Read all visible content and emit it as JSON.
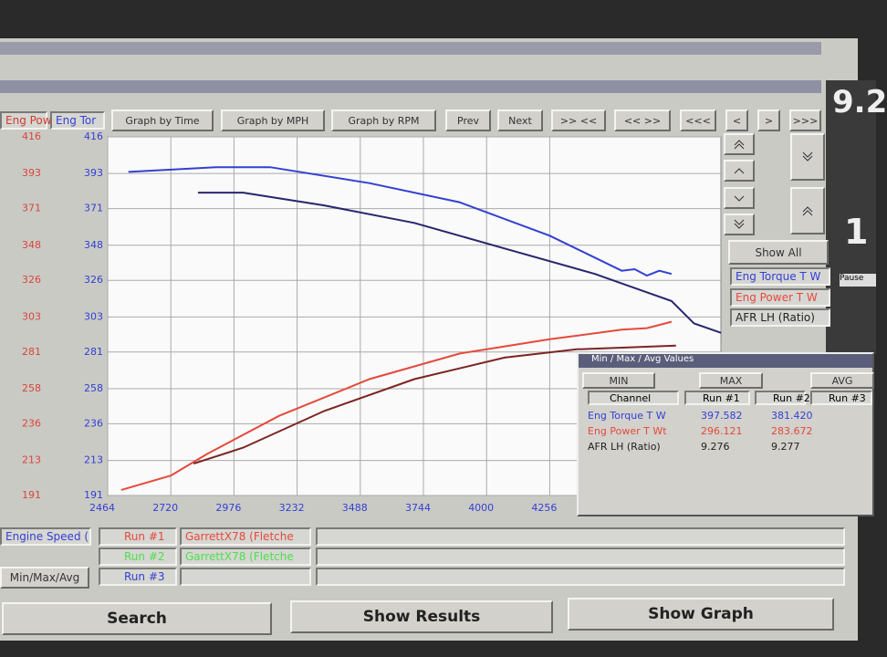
{
  "toolbar": {
    "channel_tabs": [
      "Eng Pow",
      "Eng Tor"
    ],
    "buttons": [
      "Graph by Time",
      "Graph by MPH",
      "Graph by RPM",
      "Prev",
      "Next",
      ">> <<",
      "<< >>",
      "<<<",
      "<",
      ">",
      ">>>"
    ]
  },
  "chart": {
    "type": "line",
    "xlim": [
      2464,
      4950
    ],
    "xticks": [
      2464,
      2720,
      2976,
      3232,
      3488,
      3744,
      4000,
      4256
    ],
    "ylim": [
      191,
      416
    ],
    "yticks": [
      416,
      393,
      371,
      348,
      326,
      303,
      281,
      258,
      236,
      213,
      191
    ],
    "y2lim": [
      191,
      416
    ],
    "y2ticks": [
      416,
      393,
      371,
      348,
      326,
      303,
      281,
      258,
      236,
      213,
      191
    ],
    "grid": true,
    "series": [
      {
        "color": "#3340d2",
        "axis": "y2",
        "x": [
          2548,
          2903,
          3122,
          3525,
          3890,
          4256,
          4548,
          4600,
          4650,
          4700,
          4750
        ],
        "values": [
          394,
          397,
          397,
          387,
          375,
          354,
          332,
          333,
          329,
          332,
          330
        ]
      },
      {
        "color": "#26266e",
        "axis": "y2",
        "x": [
          2830,
          3013,
          3342,
          3707,
          4073,
          4439,
          4622,
          4750,
          4841,
          4951
        ],
        "values": [
          381,
          381,
          373,
          362,
          346,
          330,
          320,
          313,
          299,
          293
        ]
      },
      {
        "color": "#e5493b",
        "axis": "y",
        "x": [
          2519,
          2720,
          2866,
          3159,
          3525,
          3890,
          4256,
          4548,
          4650,
          4750
        ],
        "values": [
          194.5,
          203.5,
          217,
          241,
          264,
          280,
          289,
          295,
          296,
          300
        ]
      },
      {
        "color": "#7c2424",
        "axis": "y",
        "x": [
          2812,
          3013,
          3342,
          3707,
          4073,
          4366,
          4768
        ],
        "values": [
          211,
          221,
          244,
          264,
          277.5,
          282.7,
          285
        ]
      }
    ]
  },
  "side_panel": {
    "show_all": "Show All",
    "channels": [
      "Eng Torque T W",
      "Eng Power T W",
      "AFR LH (Ratio)"
    ]
  },
  "readout": {
    "digits": [
      "9.2",
      "1"
    ],
    "pause": "Pause"
  },
  "minmax": {
    "title": "Min / Max / Avg Values",
    "tabs": [
      "MIN",
      "MAX",
      "AVG"
    ],
    "header": [
      "Channel",
      "Run #1",
      "Run #2",
      "Run #3"
    ],
    "rows": [
      [
        "Eng Torque T W",
        "397.582",
        "381.420",
        ""
      ],
      [
        "Eng Power T Wt",
        "296.121",
        "283.672",
        ""
      ],
      [
        "AFR LH (Ratio)",
        "9.276",
        "9.277",
        ""
      ]
    ]
  },
  "bottom": {
    "x_channel": "Engine Speed (",
    "minmax_button": "Min/Max/Avg",
    "runs": [
      [
        "Run #1",
        "GarrettX78 (Fletche"
      ],
      [
        "Run #2",
        "GarrettX78 (Fletche"
      ],
      [
        "Run #3",
        ""
      ]
    ],
    "buttons": [
      "Search",
      "Show Results",
      "Show Graph"
    ]
  }
}
